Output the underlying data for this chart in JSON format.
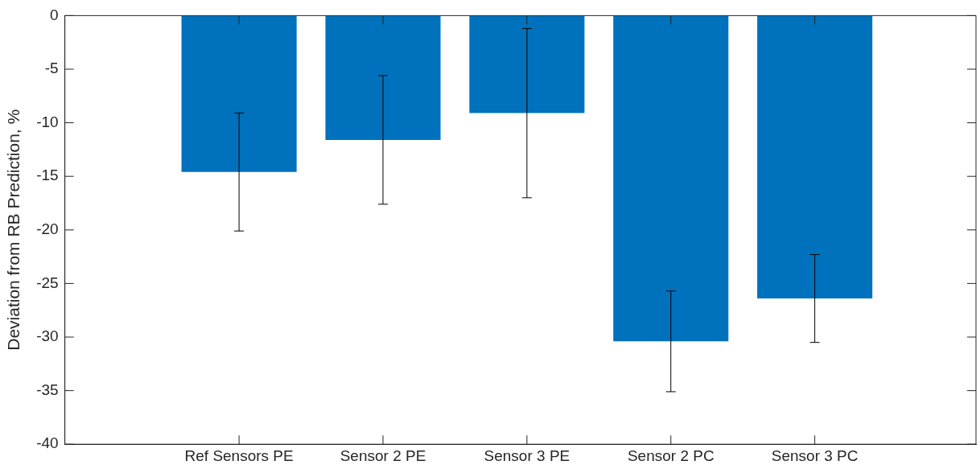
{
  "chart_data": {
    "type": "bar",
    "ylabel": "Deviation from RB Prediction, %",
    "categories": [
      "Ref Sensors PE",
      "Sensor 2 PE",
      "Sensor 3 PE",
      "Sensor 2 PC",
      "Sensor 3 PC"
    ],
    "values": [
      -14.6,
      -11.6,
      -9.1,
      -30.4,
      -26.4
    ],
    "errors": [
      5.5,
      6.0,
      7.9,
      4.7,
      4.1
    ],
    "color": "#0072bd",
    "ylim": [
      -40,
      0
    ],
    "yticks": [
      -40,
      -35,
      -30,
      -25,
      -20,
      -15,
      -10,
      -5,
      0
    ],
    "grid": false,
    "legend": false
  }
}
